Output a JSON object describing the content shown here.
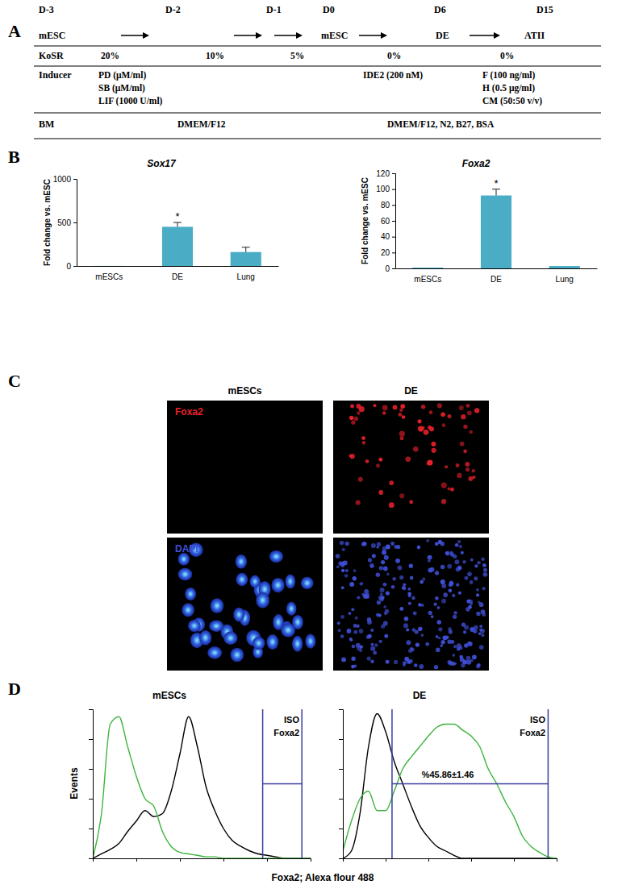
{
  "panel_labels": [
    "A",
    "B",
    "C",
    "D"
  ],
  "panel_a": {
    "days": [
      "D-3",
      "D-2",
      "D-1",
      "D0",
      "D6",
      "D15"
    ],
    "stages": [
      "mESC",
      "mESC",
      "DE",
      "ATII"
    ],
    "rows": [
      {
        "label": "KoSR",
        "cells": [
          "20%",
          "10%",
          "5%",
          "0%",
          "0%"
        ]
      },
      {
        "label": "Inducer",
        "cells": [
          [
            "PD (μM/ml)",
            "SB (μM/ml)",
            "LIF (1000 U/ml)"
          ],
          [
            "IDE2 (200 nM)"
          ],
          [
            "F (100 ng/ml)",
            "H (0.5 μg/ml)",
            "CM (50:50 v/v)"
          ]
        ]
      },
      {
        "label": "BM",
        "cells": [
          "DMEM/F12",
          "DMEM/F12, N2, B27, BSA"
        ]
      }
    ]
  },
  "chart_data": [
    {
      "type": "bar",
      "title": "Sox17",
      "ylabel": "Fold change vs. mESC",
      "categories": [
        "mESCs",
        "DE",
        "Lung"
      ],
      "values": [
        1,
        450,
        160
      ],
      "errors": [
        null,
        50,
        55
      ],
      "color": "#4bacc6",
      "ylim": [
        0,
        1000
      ],
      "yticks": [
        0,
        500,
        1000
      ],
      "annotations": [
        {
          "category": "DE",
          "text": "*"
        }
      ]
    },
    {
      "type": "bar",
      "title": "Foxa2",
      "ylabel": "Fold change vs. mESC",
      "categories": [
        "mESCs",
        "DE",
        "Lung"
      ],
      "values": [
        1,
        92,
        3
      ],
      "errors": [
        null,
        8,
        null
      ],
      "color": "#4bacc6",
      "ylim": [
        0,
        120
      ],
      "yticks": [
        0,
        20,
        40,
        60,
        80,
        100,
        120
      ],
      "annotations": [
        {
          "category": "DE",
          "text": "*"
        }
      ]
    },
    {
      "type": "line",
      "title": "mESCs",
      "x": [
        0,
        4,
        8,
        12,
        16,
        20,
        24,
        28,
        32,
        36,
        40,
        44,
        48,
        52,
        56,
        60,
        64,
        68,
        72,
        76,
        80,
        84,
        88,
        92,
        96,
        100
      ],
      "series": [
        {
          "name": "ISO",
          "color": "#000000",
          "values": [
            0,
            3,
            6,
            10,
            18,
            25,
            32,
            28,
            30,
            45,
            70,
            95,
            75,
            48,
            32,
            20,
            12,
            8,
            5,
            3,
            2,
            1,
            0,
            0,
            0,
            0
          ]
        },
        {
          "name": "Foxa2",
          "color": "#3cb43c",
          "values": [
            0,
            30,
            90,
            95,
            75,
            55,
            40,
            35,
            18,
            8,
            4,
            3,
            2,
            1,
            1,
            0,
            0,
            0,
            0,
            0,
            0,
            0,
            0,
            0,
            0,
            0
          ]
        }
      ],
      "xlim": [
        0,
        100
      ],
      "ylim": [
        0,
        100
      ],
      "xticks": [
        0,
        20,
        40,
        60,
        80,
        100
      ],
      "yticks": [
        0,
        20,
        40,
        60,
        80,
        100
      ],
      "tick_labels": false,
      "legend": "top right",
      "gate": {
        "x": [
          78,
          96
        ],
        "y": 50
      }
    },
    {
      "type": "line",
      "title": "DE",
      "x": [
        0,
        4,
        8,
        12,
        16,
        20,
        24,
        28,
        32,
        36,
        40,
        44,
        48,
        52,
        56,
        60,
        64,
        68,
        72,
        76,
        80,
        84,
        88,
        92,
        96,
        100
      ],
      "series": [
        {
          "name": "ISO",
          "color": "#000000",
          "values": [
            0,
            5,
            30,
            75,
            97,
            85,
            65,
            50,
            35,
            22,
            14,
            8,
            5,
            2,
            0,
            0,
            0,
            0,
            0,
            0,
            0,
            0,
            0,
            0,
            0,
            0
          ]
        },
        {
          "name": "Foxa2",
          "color": "#3cb43c",
          "values": [
            5,
            25,
            40,
            45,
            32,
            32,
            45,
            60,
            68,
            75,
            82,
            88,
            90,
            90,
            86,
            82,
            75,
            60,
            50,
            38,
            28,
            15,
            8,
            4,
            1,
            0
          ]
        }
      ],
      "xlim": [
        0,
        100
      ],
      "ylim": [
        0,
        100
      ],
      "xticks": [
        0,
        20,
        40,
        60,
        80,
        100
      ],
      "yticks": [
        0,
        20,
        40,
        60,
        80,
        100
      ],
      "tick_labels": false,
      "legend": "top right",
      "gate": {
        "x": [
          23,
          96
        ],
        "y": 50,
        "label": "%45.86±1.46"
      }
    }
  ],
  "panel_c": {
    "columns": [
      "mESCs",
      "DE"
    ],
    "stains": [
      {
        "name": "Foxa2",
        "color": "#e8202a"
      },
      {
        "name": "DAPI",
        "color": "#4050d8"
      }
    ]
  },
  "panel_d": {
    "xlabel": "Foxa2; Alexa flour 488",
    "ylabel": "Events"
  }
}
